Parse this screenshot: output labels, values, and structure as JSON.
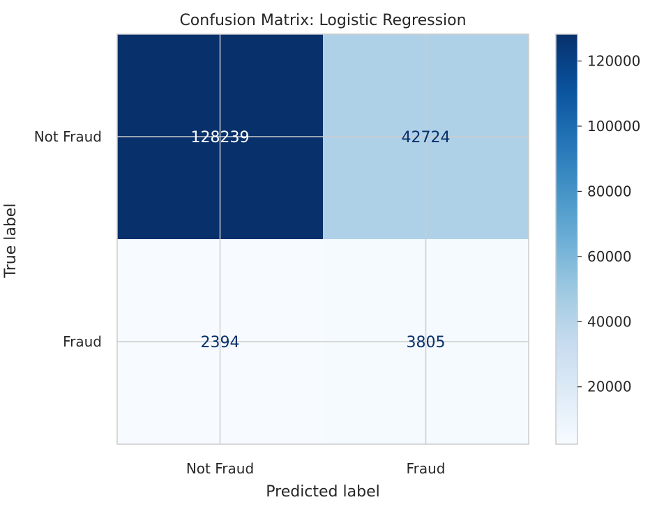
{
  "chart_data": {
    "type": "heatmap",
    "title": "Confusion Matrix: Logistic Regression",
    "xlabel": "Predicted label",
    "ylabel": "True label",
    "x_categories": [
      "Not Fraud",
      "Fraud"
    ],
    "y_categories": [
      "Not Fraud",
      "Fraud"
    ],
    "values": [
      [
        128239,
        42724
      ],
      [
        2394,
        3805
      ]
    ],
    "colormap": "Blues",
    "color_range": [
      2394,
      128239
    ],
    "colorbar_ticks": [
      20000,
      40000,
      60000,
      80000,
      100000,
      120000
    ],
    "grid": true,
    "colors": {
      "low": "#f7fbff",
      "high": "#08306b",
      "grid": "#cccccc",
      "frame": "#cccccc",
      "text_dark_cell": "#ffffff",
      "text_light_cell": "#08306b"
    }
  }
}
